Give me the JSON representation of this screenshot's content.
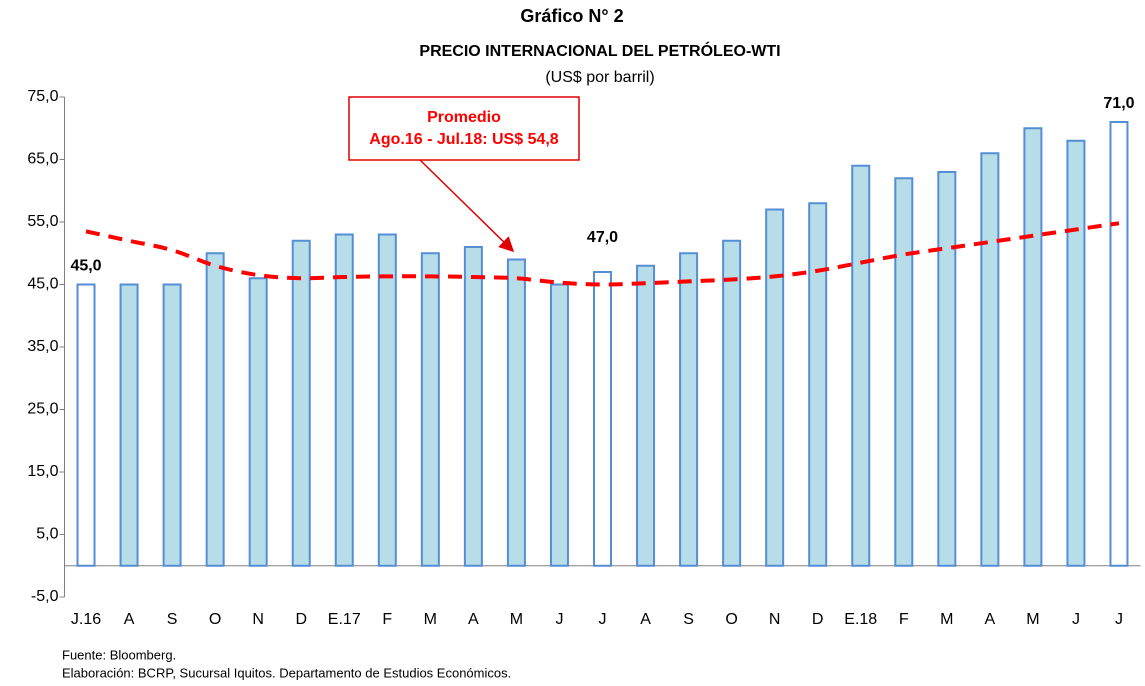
{
  "chart_data": {
    "type": "bar",
    "title": "Gráfico N° 2",
    "subtitle": "PRECIO INTERNACIONAL DEL PETRÓLEO-WTI",
    "unit_label": "(US$ por barril)",
    "categories": [
      "J.16",
      "A",
      "S",
      "O",
      "N",
      "D",
      "E.17",
      "F",
      "M",
      "A",
      "M",
      "J",
      "J",
      "A",
      "S",
      "O",
      "N",
      "D",
      "E.18",
      "F",
      "M",
      "A",
      "M",
      "J",
      "J"
    ],
    "values": [
      45,
      45,
      45,
      50,
      46,
      52,
      53,
      53,
      50,
      51,
      49,
      45,
      47,
      48,
      50,
      52,
      57,
      58,
      64,
      62,
      63,
      66,
      70,
      68,
      71
    ],
    "value_labels": [
      "45,0",
      null,
      null,
      null,
      null,
      null,
      null,
      null,
      null,
      null,
      null,
      null,
      "47,0",
      null,
      null,
      null,
      null,
      null,
      null,
      null,
      null,
      null,
      null,
      null,
      "71,0"
    ],
    "bar_colors": [
      "#ffffff",
      "#b7dde8",
      "#b7dde8",
      "#b7dde8",
      "#b7dde8",
      "#b7dde8",
      "#b7dde8",
      "#b7dde8",
      "#b7dde8",
      "#b7dde8",
      "#b7dde8",
      "#b7dde8",
      "#ffffff",
      "#b7dde8",
      "#b7dde8",
      "#b7dde8",
      "#b7dde8",
      "#b7dde8",
      "#b7dde8",
      "#b7dde8",
      "#b7dde8",
      "#b7dde8",
      "#b7dde8",
      "#b7dde8",
      "#ffffff"
    ],
    "edge_color": "#558ed5",
    "trend": {
      "color": "#ff0000",
      "values": [
        53.5,
        52,
        50.5,
        48,
        46.5,
        46,
        46.2,
        46.3,
        46.3,
        46.2,
        46,
        45.3,
        45,
        45.2,
        45.5,
        45.8,
        46.3,
        47.2,
        48.5,
        49.8,
        50.8,
        51.8,
        52.8,
        53.8,
        54.8
      ]
    },
    "annotation": [
      "Promedio",
      "Ago.16 - Jul.18: US$ 54,8"
    ],
    "ylim": [
      -5,
      75
    ],
    "yticks": [
      {
        "value": -5,
        "label": "-5,0"
      },
      {
        "value": 5,
        "label": "5,0"
      },
      {
        "value": 15,
        "label": "15,0"
      },
      {
        "value": 25,
        "label": "25,0"
      },
      {
        "value": 35,
        "label": "35,0"
      },
      {
        "value": 45,
        "label": "45,0"
      },
      {
        "value": 55,
        "label": "55,0"
      },
      {
        "value": 65,
        "label": "65,0"
      },
      {
        "value": 75,
        "label": "75,0"
      }
    ],
    "notes": [
      "Fuente: Bloomberg.",
      "Elaboración: BCRP, Sucursal Iquitos. Departamento de Estudios Económicos."
    ]
  }
}
